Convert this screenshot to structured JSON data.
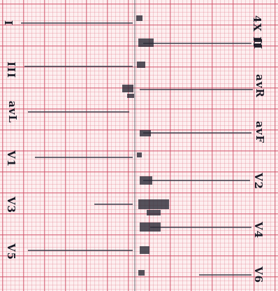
{
  "leads": {
    "rhythm": "4X II",
    "i": "I",
    "ii": "II",
    "iii": "III",
    "avr": "avR",
    "avl": "avL",
    "avf": "avF",
    "v1": "V1",
    "v2": "V2",
    "v3": "V3",
    "v4": "V4",
    "v5": "V5",
    "v6": "V6"
  },
  "colors": {
    "grid_major": "#cd465f",
    "grid_minor": "#e18796",
    "paper": "#fdeff0",
    "trace": "#3a3a48"
  }
}
